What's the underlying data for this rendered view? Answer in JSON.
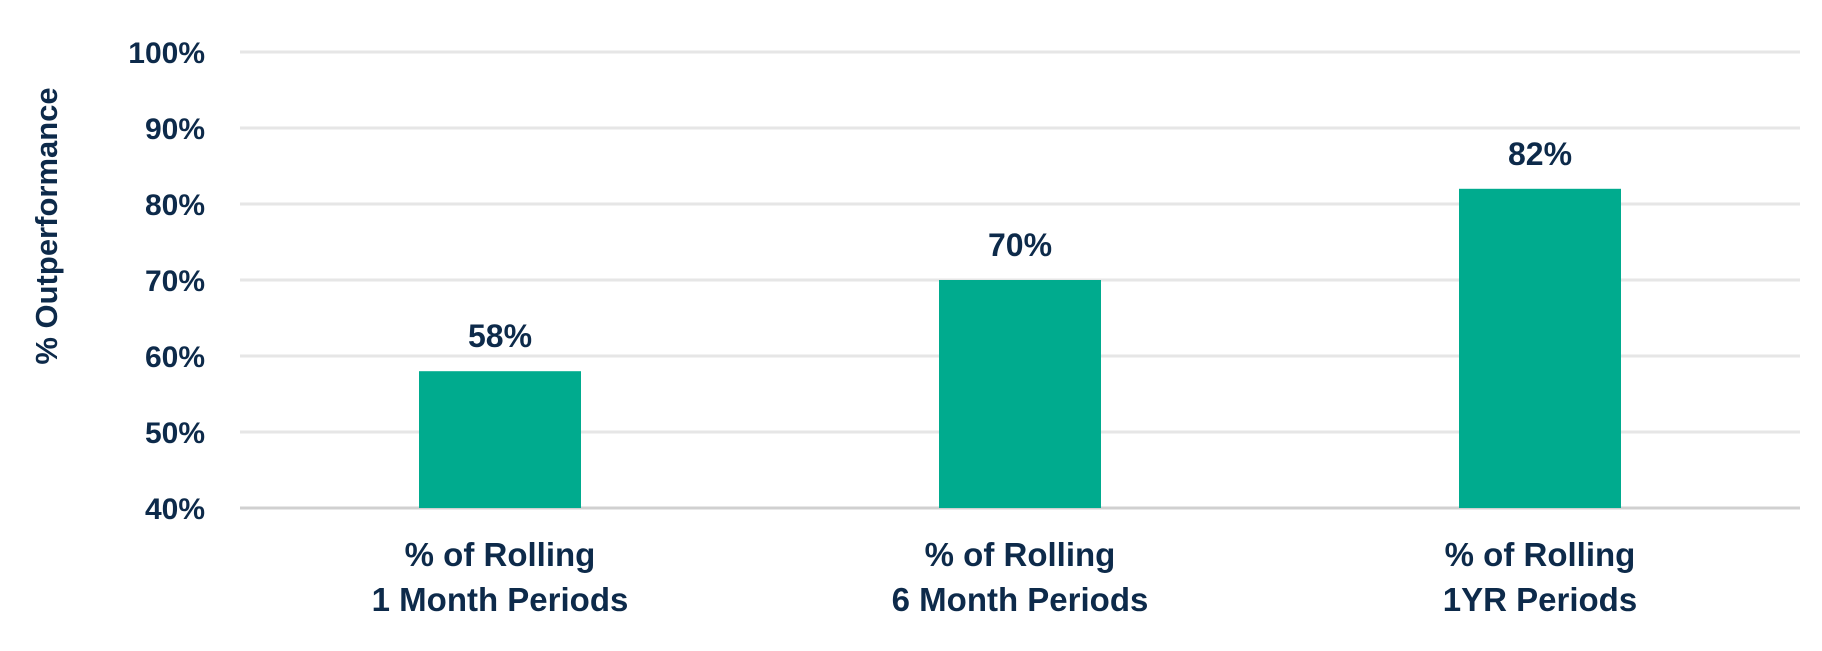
{
  "chart_data": {
    "type": "bar",
    "title": "",
    "xlabel": "",
    "ylabel": "% Outperformance",
    "ylim": [
      40,
      100
    ],
    "yticks": [
      100,
      90,
      80,
      70,
      60,
      50,
      40
    ],
    "ytick_labels": [
      "100%",
      "90%",
      "80%",
      "70%",
      "60%",
      "50%",
      "40%"
    ],
    "categories": [
      [
        "% of Rolling",
        "1 Month Periods"
      ],
      [
        "% of Rolling",
        "6 Month Periods"
      ],
      [
        "% of Rolling",
        "1YR Periods"
      ]
    ],
    "values": [
      58,
      70,
      82
    ],
    "value_labels": [
      "58%",
      "70%",
      "82%"
    ],
    "grid": true,
    "legend": "none"
  },
  "colors": {
    "bar": "#00ab8e",
    "text": "#0d2a4a",
    "grid": "#e6e6e6",
    "baseline": "#d0d0d0"
  }
}
